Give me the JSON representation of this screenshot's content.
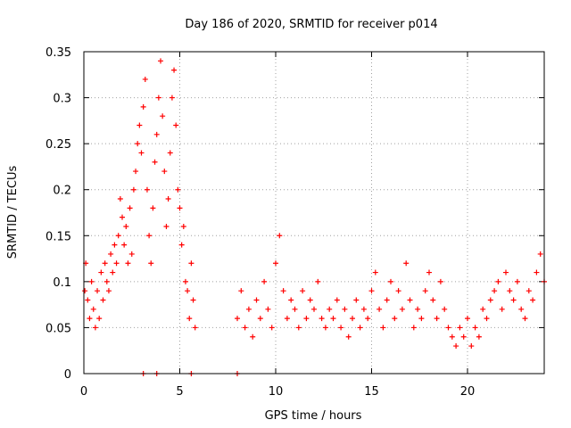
{
  "chart_data": {
    "type": "scatter",
    "title": "Day 186 of 2020, SRMTID for receiver p014",
    "xlabel": "GPS time / hours",
    "ylabel": "SRMTID / TECUs",
    "xlim": [
      0,
      24
    ],
    "ylim": [
      0,
      0.35
    ],
    "xticks": [
      0,
      5,
      10,
      15,
      20
    ],
    "xtick_labels": [
      "0",
      "5",
      "10",
      "15",
      "20"
    ],
    "yticks": [
      0,
      0.05,
      0.1,
      0.15,
      0.2,
      0.25,
      0.3,
      0.35
    ],
    "ytick_labels": [
      "0",
      "0.05",
      "0.1",
      "0.15",
      "0.2",
      "0.25",
      "0.3",
      "0.35"
    ],
    "grid": true,
    "marker": "+",
    "color": "#ff0000",
    "series": [
      {
        "name": "SRMTID",
        "x": [
          0.05,
          0.1,
          0.2,
          0.3,
          0.4,
          0.5,
          0.6,
          0.7,
          0.8,
          0.9,
          1.0,
          1.1,
          1.2,
          1.3,
          1.4,
          1.5,
          1.6,
          1.7,
          1.8,
          1.9,
          2.0,
          2.1,
          2.2,
          2.3,
          2.4,
          2.5,
          2.6,
          2.7,
          2.8,
          2.9,
          3.0,
          3.1,
          3.2,
          3.3,
          3.4,
          3.5,
          3.6,
          3.7,
          3.8,
          3.9,
          4.0,
          4.1,
          4.2,
          4.3,
          4.4,
          4.5,
          4.6,
          4.7,
          4.8,
          4.9,
          5.0,
          5.1,
          5.2,
          5.3,
          5.4,
          5.5,
          5.6,
          5.7,
          5.8,
          8.0,
          8.2,
          8.4,
          8.6,
          8.8,
          9.0,
          9.2,
          9.4,
          9.6,
          9.8,
          10.0,
          10.2,
          10.4,
          10.6,
          10.8,
          11.0,
          11.2,
          11.4,
          11.6,
          11.8,
          12.0,
          12.2,
          12.4,
          12.6,
          12.8,
          13.0,
          13.2,
          13.4,
          13.6,
          13.8,
          14.0,
          14.2,
          14.4,
          14.6,
          14.8,
          15.0,
          15.2,
          15.4,
          15.6,
          15.8,
          16.0,
          16.2,
          16.4,
          16.6,
          16.8,
          17.0,
          17.2,
          17.4,
          17.6,
          17.8,
          18.0,
          18.2,
          18.4,
          18.6,
          18.8,
          19.0,
          19.2,
          19.4,
          19.6,
          19.8,
          20.0,
          20.2,
          20.4,
          20.6,
          20.8,
          21.0,
          21.2,
          21.4,
          21.6,
          21.8,
          22.0,
          22.2,
          22.4,
          22.6,
          22.8,
          23.0,
          23.2,
          23.4,
          23.6,
          23.8,
          24.0,
          3.1,
          3.8,
          5.6,
          8.0
        ],
        "y": [
          0.09,
          0.12,
          0.08,
          0.06,
          0.1,
          0.07,
          0.05,
          0.09,
          0.06,
          0.11,
          0.08,
          0.12,
          0.1,
          0.09,
          0.13,
          0.11,
          0.14,
          0.12,
          0.15,
          0.19,
          0.17,
          0.14,
          0.16,
          0.12,
          0.18,
          0.13,
          0.2,
          0.22,
          0.25,
          0.27,
          0.24,
          0.29,
          0.32,
          0.2,
          0.15,
          0.12,
          0.18,
          0.23,
          0.26,
          0.3,
          0.34,
          0.28,
          0.22,
          0.16,
          0.19,
          0.24,
          0.3,
          0.33,
          0.27,
          0.2,
          0.18,
          0.14,
          0.16,
          0.1,
          0.09,
          0.06,
          0.12,
          0.08,
          0.05,
          0.06,
          0.09,
          0.05,
          0.07,
          0.04,
          0.08,
          0.06,
          0.1,
          0.07,
          0.05,
          0.12,
          0.15,
          0.09,
          0.06,
          0.08,
          0.07,
          0.05,
          0.09,
          0.06,
          0.08,
          0.07,
          0.1,
          0.06,
          0.05,
          0.07,
          0.06,
          0.08,
          0.05,
          0.07,
          0.04,
          0.06,
          0.08,
          0.05,
          0.07,
          0.06,
          0.09,
          0.11,
          0.07,
          0.05,
          0.08,
          0.1,
          0.06,
          0.09,
          0.07,
          0.12,
          0.08,
          0.05,
          0.07,
          0.06,
          0.09,
          0.11,
          0.08,
          0.06,
          0.1,
          0.07,
          0.05,
          0.04,
          0.03,
          0.05,
          0.04,
          0.06,
          0.03,
          0.05,
          0.04,
          0.07,
          0.06,
          0.08,
          0.09,
          0.1,
          0.07,
          0.11,
          0.09,
          0.08,
          0.1,
          0.07,
          0.06,
          0.09,
          0.08,
          0.11,
          0.13,
          0.1,
          0.0,
          0.0,
          0.0,
          0.0
        ]
      }
    ]
  }
}
